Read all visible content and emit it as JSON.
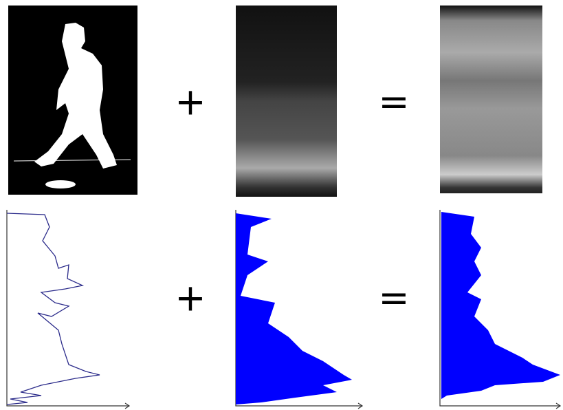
{
  "operators": {
    "top": [
      "+",
      "="
    ],
    "bottom": [
      "+",
      "="
    ]
  }
}
